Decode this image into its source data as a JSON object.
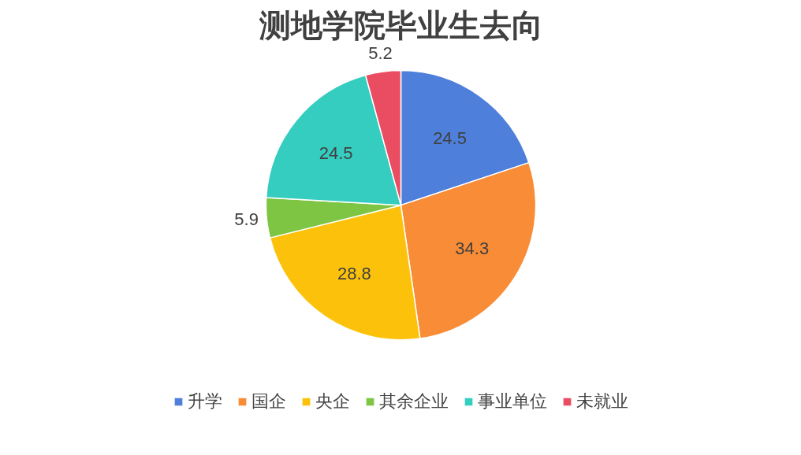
{
  "chart_data": {
    "type": "pie",
    "title": "测地学院毕业生去向",
    "categories": [
      "升学",
      "国企",
      "央企",
      "其余企业",
      "事业单位",
      "未就业"
    ],
    "values": [
      24.5,
      34.3,
      28.8,
      5.9,
      24.5,
      5.2
    ],
    "colors": [
      "#4e7fdb",
      "#f98c36",
      "#fcc20b",
      "#7dc542",
      "#36cdc1",
      "#ea4d62"
    ],
    "data_labels": true,
    "legend": "bottom"
  }
}
